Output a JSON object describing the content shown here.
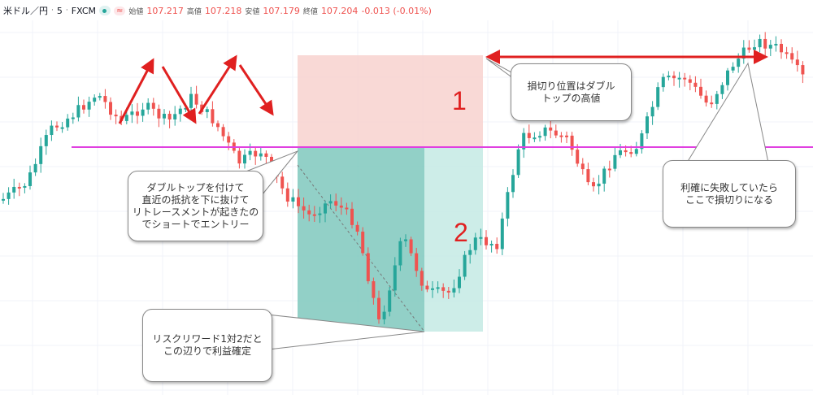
{
  "header": {
    "symbol": "米ドル／円",
    "interval": "5",
    "source": "FXCM",
    "open_label": "始値",
    "open": "107.217",
    "high_label": "高値",
    "high": "107.218",
    "low_label": "安値",
    "low": "107.179",
    "close_label": "終値",
    "close": "107.204",
    "change": "-0.013 (-0.01%)"
  },
  "colors": {
    "up": "#26a69a",
    "down": "#ef5350",
    "support_line": "#e040e0",
    "stop_zone": "#f8cfcc",
    "target_zone_dark": "#7fc8bd",
    "target_zone_light": "#c8ebe6",
    "annotation": "#e02020"
  },
  "annotations": {
    "label_1": "1",
    "label_2": "2",
    "callout_stop": "損切り位置はダブル\nトップの高値",
    "callout_fail": "利確に失敗していたら\nここで損切りになる",
    "callout_entry": "ダブルトップを付けて\n直近の抵抗を下に抜けて\nリトレースメントが起きたの\nでショートでエントリー",
    "callout_target": "リスクリワード1対2だと\nこの辺りで利益確定"
  },
  "chart_data": {
    "type": "candlestick",
    "title": "",
    "xlabel": "",
    "ylabel": "",
    "grid": true,
    "approx_close_path": [
      107.176,
      107.184,
      107.21,
      107.218,
      107.228,
      107.214,
      107.222,
      107.214,
      107.226,
      107.214,
      107.194,
      107.2,
      107.178,
      107.168,
      107.176,
      107.164,
      107.114,
      107.158,
      107.13,
      107.13,
      107.156,
      107.154,
      107.206,
      107.21,
      107.206,
      107.178,
      107.198,
      107.202,
      107.234,
      107.236,
      107.222,
      107.242,
      107.254,
      107.25,
      107.236
    ]
  }
}
